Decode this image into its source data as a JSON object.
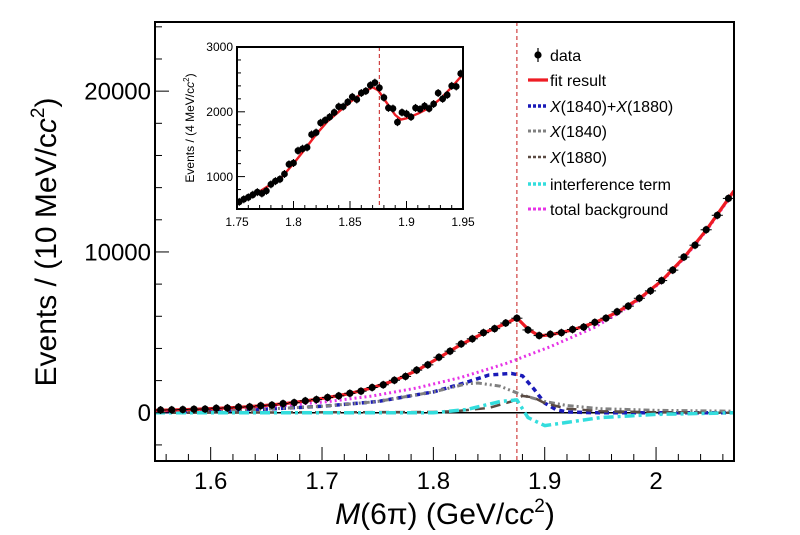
{
  "chart_data": [
    {
      "type": "line",
      "xlabel_italic": "M",
      "xlabel_rest": "(6π) (GeV/c",
      "xlabel_sup": "2",
      "xlabel_close": ")",
      "ylabel": "Events / (10 MeV/c",
      "ylabel_sup": "2",
      "ylabel_close": ")",
      "xlim": [
        1.55,
        2.07
      ],
      "ylim": [
        -3000,
        24300
      ],
      "xticks": [
        "1.6",
        "1.7",
        "1.8",
        "1.9",
        "2"
      ],
      "yticks": [
        "0",
        "10000",
        "20000"
      ],
      "threshold_line_x": 1.875,
      "legend_placement": "top-right",
      "legend": [
        {
          "key": "data",
          "text": "data"
        },
        {
          "key": "fit",
          "text": "fit result"
        },
        {
          "key": "sum",
          "parts": [
            "X",
            "(1840)+",
            "X",
            "(1880)"
          ]
        },
        {
          "key": "x1840",
          "parts": [
            "X",
            "(1840)"
          ]
        },
        {
          "key": "x1880",
          "parts": [
            "X",
            "(1880)"
          ]
        },
        {
          "key": "interf",
          "text": "interference term"
        },
        {
          "key": "bkg",
          "text": "total background"
        }
      ],
      "colors": {
        "data": "#000000",
        "fit": "#ee1c24",
        "sum": "#1a1ab8",
        "x1840": "#808080",
        "x1880": "#5a4a42",
        "interf": "#33dddd",
        "bkg": "#e633e6",
        "threshold": "#d04040"
      },
      "data_points": {
        "x": [
          1.555,
          1.565,
          1.575,
          1.585,
          1.595,
          1.605,
          1.615,
          1.625,
          1.635,
          1.645,
          1.655,
          1.665,
          1.675,
          1.685,
          1.695,
          1.705,
          1.715,
          1.725,
          1.735,
          1.745,
          1.755,
          1.765,
          1.775,
          1.785,
          1.795,
          1.805,
          1.815,
          1.825,
          1.835,
          1.845,
          1.855,
          1.865,
          1.875,
          1.885,
          1.895,
          1.905,
          1.915,
          1.925,
          1.935,
          1.945,
          1.955,
          1.965,
          1.975,
          1.985,
          1.995,
          2.005,
          2.015,
          2.025,
          2.035,
          2.045,
          2.055,
          2.065
        ],
        "y": [
          170,
          180,
          200,
          220,
          230,
          280,
          300,
          350,
          370,
          440,
          480,
          570,
          630,
          740,
          820,
          950,
          1050,
          1210,
          1340,
          1570,
          1740,
          2020,
          2260,
          2650,
          2980,
          3450,
          3830,
          4280,
          4600,
          4980,
          5230,
          5580,
          5880,
          5150,
          4800,
          4880,
          4980,
          5180,
          5330,
          5620,
          5880,
          6280,
          6630,
          7120,
          7580,
          8220,
          8870,
          9680,
          10420,
          11380,
          12280,
          13330
        ]
      },
      "series": [
        {
          "key": "fit",
          "x": [
            1.55,
            1.565,
            1.585,
            1.605,
            1.625,
            1.645,
            1.665,
            1.685,
            1.705,
            1.725,
            1.745,
            1.765,
            1.785,
            1.805,
            1.825,
            1.845,
            1.865,
            1.875,
            1.885,
            1.895,
            1.905,
            1.925,
            1.945,
            1.965,
            1.985,
            2.005,
            2.025,
            2.045,
            2.07
          ],
          "y": [
            150,
            170,
            210,
            270,
            340,
            430,
            560,
            730,
            940,
            1200,
            1550,
            2000,
            2620,
            3420,
            4250,
            4950,
            5550,
            5900,
            5200,
            4780,
            4850,
            5150,
            5600,
            6250,
            7100,
            8200,
            9650,
            11350,
            13800
          ]
        },
        {
          "key": "bkg",
          "x": [
            1.55,
            1.585,
            1.625,
            1.665,
            1.705,
            1.745,
            1.785,
            1.825,
            1.865,
            1.905,
            1.945,
            1.965,
            1.985,
            2.005,
            2.025,
            2.045,
            2.07
          ],
          "y": [
            130,
            195,
            300,
            455,
            690,
            1040,
            1540,
            2200,
            3060,
            4110,
            5320,
            6150,
            7050,
            8150,
            9600,
            11300,
            13750
          ]
        },
        {
          "key": "sum",
          "x": [
            1.55,
            1.6,
            1.65,
            1.7,
            1.75,
            1.8,
            1.83,
            1.85,
            1.87,
            1.88,
            1.89,
            1.9,
            1.91,
            1.92,
            1.95,
            2.07
          ],
          "y": [
            50,
            100,
            230,
            400,
            700,
            1300,
            1900,
            2350,
            2450,
            2300,
            1500,
            600,
            200,
            50,
            0,
            0
          ]
        },
        {
          "key": "x1840",
          "x": [
            1.55,
            1.6,
            1.65,
            1.7,
            1.75,
            1.8,
            1.83,
            1.84,
            1.86,
            1.88,
            1.9,
            1.92,
            1.95,
            2.0,
            2.07
          ],
          "y": [
            50,
            100,
            230,
            400,
            700,
            1300,
            1800,
            1850,
            1650,
            1100,
            700,
            450,
            250,
            150,
            100
          ]
        },
        {
          "key": "x1880",
          "x": [
            1.55,
            1.8,
            1.82,
            1.85,
            1.87,
            1.88,
            1.89,
            1.9,
            1.92,
            1.95,
            2.0,
            2.07
          ],
          "y": [
            0,
            50,
            100,
            300,
            700,
            1050,
            950,
            600,
            250,
            100,
            30,
            0
          ]
        },
        {
          "key": "interf",
          "x": [
            1.55,
            1.8,
            1.83,
            1.86,
            1.875,
            1.885,
            1.9,
            1.92,
            1.95,
            2.0,
            2.07
          ],
          "y": [
            0,
            0,
            200,
            700,
            800,
            -300,
            -800,
            -600,
            -300,
            -100,
            0
          ]
        }
      ]
    },
    {
      "type": "line",
      "ylabel": "Events / (4 MeV/c",
      "ylabel_sup": "2",
      "ylabel_close": ")",
      "xlim": [
        1.75,
        1.95
      ],
      "ylim": [
        500,
        3000
      ],
      "xticks": [
        "1.75",
        "1.8",
        "1.85",
        "1.9",
        "1.95"
      ],
      "yticks": [
        "1000",
        "2000",
        "3000"
      ],
      "threshold_line_x": 1.876,
      "data_points": {
        "x": [
          1.752,
          1.756,
          1.76,
          1.764,
          1.768,
          1.772,
          1.776,
          1.78,
          1.784,
          1.788,
          1.792,
          1.796,
          1.8,
          1.804,
          1.808,
          1.812,
          1.816,
          1.82,
          1.824,
          1.828,
          1.832,
          1.836,
          1.84,
          1.844,
          1.848,
          1.852,
          1.856,
          1.86,
          1.864,
          1.868,
          1.872,
          1.876,
          1.88,
          1.884,
          1.888,
          1.892,
          1.896,
          1.9,
          1.904,
          1.908,
          1.912,
          1.916,
          1.92,
          1.924,
          1.928,
          1.932,
          1.936,
          1.94,
          1.944,
          1.948
        ],
        "y": [
          610,
          650,
          680,
          720,
          760,
          740,
          780,
          880,
          930,
          960,
          1040,
          1190,
          1210,
          1400,
          1430,
          1450,
          1650,
          1680,
          1830,
          1870,
          1920,
          1990,
          2080,
          2080,
          2150,
          2230,
          2190,
          2290,
          2320,
          2410,
          2450,
          2370,
          2220,
          2060,
          2050,
          1840,
          1990,
          1970,
          1920,
          2060,
          2040,
          2090,
          2050,
          2120,
          2290,
          2200,
          2260,
          2400,
          2390,
          2590
        ]
      },
      "series": [
        {
          "key": "fit",
          "x": [
            1.75,
            1.76,
            1.77,
            1.78,
            1.79,
            1.8,
            1.81,
            1.82,
            1.83,
            1.84,
            1.85,
            1.86,
            1.87,
            1.875,
            1.88,
            1.89,
            1.895,
            1.9,
            1.91,
            1.92,
            1.93,
            1.94,
            1.95
          ],
          "y": [
            600,
            680,
            770,
            880,
            1000,
            1200,
            1420,
            1650,
            1850,
            2000,
            2150,
            2280,
            2380,
            2330,
            2200,
            1950,
            1880,
            1900,
            1970,
            2060,
            2200,
            2380,
            2580
          ]
        }
      ]
    }
  ]
}
